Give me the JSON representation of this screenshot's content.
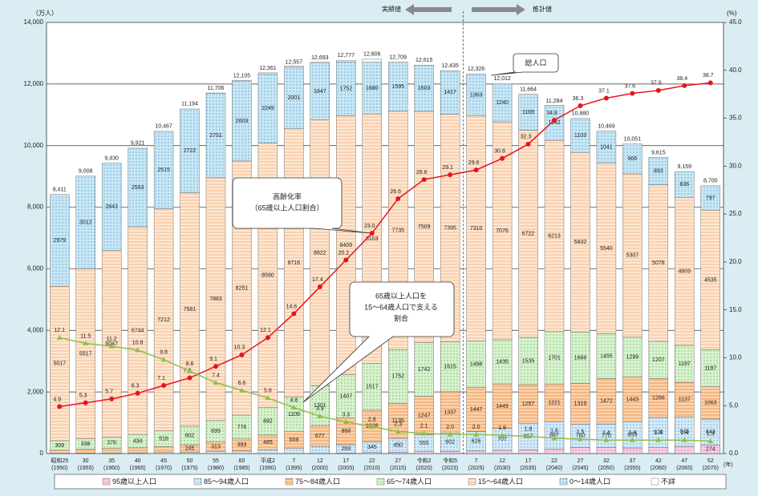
{
  "chart_data": {
    "type": "bar",
    "stacked": true,
    "y_unit_label": "（万人）",
    "y2_unit_label": "(%)",
    "x_unit_label": "(年)",
    "period_labels": [
      "実績値",
      "推計値"
    ],
    "categories": [
      [
        "昭和25",
        "(1950)"
      ],
      [
        "30",
        "(1955)"
      ],
      [
        "35",
        "(1960)"
      ],
      [
        "40",
        "(1965)"
      ],
      [
        "45",
        "(1970)"
      ],
      [
        "50",
        "(1975)"
      ],
      [
        "55",
        "(1980)"
      ],
      [
        "60",
        "(1985)"
      ],
      [
        "平成2",
        "(1990)"
      ],
      [
        "7",
        "(1995)"
      ],
      [
        "12",
        "(2000)"
      ],
      [
        "17",
        "(2005)"
      ],
      [
        "22",
        "(2010)"
      ],
      [
        "27",
        "(2015)"
      ],
      [
        "令和2",
        "(2020)"
      ],
      [
        "令和5",
        "(2023)"
      ],
      [
        "7",
        "(2025)"
      ],
      [
        "12",
        "(2030)"
      ],
      [
        "17",
        "(2035)"
      ],
      [
        "22",
        "(2040)"
      ],
      [
        "27",
        "(2045)"
      ],
      [
        "32",
        "(2050)"
      ],
      [
        "37",
        "(2055)"
      ],
      [
        "42",
        "(2060)"
      ],
      [
        "47",
        "(2065)"
      ],
      [
        "52",
        "(2070)"
      ]
    ],
    "ylim": [
      0,
      14000
    ],
    "yticks": [
      0,
      {
        "value": 2000,
        "label": "2,000"
      },
      {
        "value": 4000,
        "label": "4,000"
      },
      {
        "value": 6000,
        "label": "6,000"
      },
      {
        "value": 8000,
        "label": "8,000"
      },
      {
        "value": 10000,
        "label": "10,000"
      },
      {
        "value": 12000,
        "label": "12,000"
      },
      {
        "value": 14000,
        "label": "14,000"
      }
    ],
    "y2lim": [
      0,
      45
    ],
    "y2ticks": [
      {
        "value": 0,
        "label": "0.0"
      },
      {
        "value": 5,
        "label": "5.0"
      },
      {
        "value": 10,
        "label": "10.0"
      },
      {
        "value": 15,
        "label": "15.0"
      },
      {
        "value": 20,
        "label": "20.0"
      },
      {
        "value": 25,
        "label": "25.0"
      },
      {
        "value": 30,
        "label": "30.0"
      },
      {
        "value": 35,
        "label": "35.0"
      },
      {
        "value": 40,
        "label": "40.0"
      },
      {
        "value": 45,
        "label": "45.0"
      }
    ],
    "grid": true,
    "series": [
      {
        "name": "95歳以上人口",
        "color": "#f9cde4",
        "hatch": "dots",
        "hatch_color": "#d0559a",
        "values": [
          1,
          1,
          1,
          1,
          1,
          1,
          1,
          2,
          3,
          4,
          9,
          17,
          34,
          42,
          58,
          68,
          81,
          105,
          124,
          150,
          198,
          191,
          182,
          201,
          234,
          274
        ]
      },
      {
        "name": "85～94歳人口",
        "color": "#d3ebf8",
        "hatch": "dots",
        "hatch_color": "#3a7fc0",
        "values": [
          11,
          14,
          18,
          24,
          31,
          39,
          58,
          78,
          112,
          158,
          223,
          269,
          345,
          450,
          555,
          602,
          626,
          707,
          857,
          887,
          760,
          770,
          853,
          970,
          945,
          843
        ]
      },
      {
        "name": "75～84歳人口",
        "color": "#fbd3ae",
        "hatch": "lines",
        "hatch_color": "#ee8a3a",
        "values": [
          96,
          125,
          146,
          160,
          190,
          245,
          313,
          393,
          485,
          559,
          677,
          868,
          1028,
          1135,
          1247,
          1337,
          1447,
          1449,
          1257,
          1221,
          1319,
          1472,
          1443,
          1266,
          1137,
          1063
        ]
      },
      {
        "name": "65～74歳人口",
        "color": "#d8f2cf",
        "hatch": "dots",
        "hatch_color": "#4fa83a",
        "values": [
          309,
          338,
          376,
          434,
          516,
          602,
          699,
          776,
          892,
          1109,
          1301,
          1407,
          1517,
          1752,
          1742,
          1615,
          1498,
          1435,
          1535,
          1701,
          1668,
          1455,
          1299,
          1207,
          1197,
          1187
        ]
      },
      {
        "name": "15～64歳人口",
        "color": "#fde7d2",
        "hatch": "lines",
        "hatch_color": "#f3b07c",
        "values": [
          5017,
          5517,
          6047,
          6744,
          7212,
          7581,
          7883,
          8251,
          8590,
          8716,
          8622,
          8409,
          8103,
          7735,
          7509,
          7395,
          7310,
          7076,
          6722,
          6213,
          5832,
          5540,
          5307,
          5078,
          4809,
          4535
        ]
      },
      {
        "name": "0～14歳人口",
        "color": "#c8e7f5",
        "hatch": "dots",
        "hatch_color": "#2f86bf",
        "values": [
          2979,
          3012,
          2843,
          2553,
          2515,
          2722,
          2751,
          2603,
          2249,
          2001,
          1847,
          1752,
          1680,
          1595,
          1503,
          1417,
          1363,
          1240,
          1169,
          1142,
          1103,
          1041,
          966,
          893,
          836,
          797
        ]
      },
      {
        "name": "不詳",
        "color": "#ffffff",
        "hatch": "none",
        "hatch_color": "#ffffff",
        "values": [
          null,
          null,
          null,
          null,
          null,
          null,
          5,
          4,
          33,
          37,
          28,
          48,
          98,
          null,
          null,
          null,
          null,
          null,
          null,
          null,
          null,
          null,
          null,
          null,
          null,
          null
        ]
      }
    ],
    "totals": [
      8411,
      9008,
      9430,
      9921,
      10467,
      11194,
      11706,
      12105,
      12361,
      12557,
      12693,
      12777,
      12806,
      12709,
      12615,
      12435,
      12326,
      12012,
      11664,
      11284,
      10880,
      10469,
      10051,
      9615,
      9159,
      8700
    ],
    "total_labels": [
      "8,411",
      "9,008",
      "9,430",
      "9,921",
      "10,467",
      "11,194",
      "11,706",
      "12,105",
      "12,361",
      "12,557",
      "12,693",
      "12,777",
      "12,806",
      "12,709",
      "12,615",
      "12,435",
      "12,326",
      "12,012",
      "11,664",
      "11,284",
      "10,880",
      "10,469",
      "10,051",
      "9,615",
      "9,159",
      "8,700"
    ],
    "lines": [
      {
        "type": "line",
        "axis": "y2",
        "color": "#e8141c",
        "marker": "circle",
        "values": [
          4.9,
          5.3,
          5.7,
          6.3,
          7.1,
          7.9,
          9.1,
          10.3,
          12.1,
          14.6,
          17.4,
          20.2,
          23.0,
          26.6,
          28.6,
          29.1,
          29.6,
          30.8,
          32.3,
          34.8,
          36.3,
          37.1,
          37.6,
          37.9,
          38.4,
          38.7
        ],
        "value_labels": [
          "4.9",
          "5.3",
          "5.7",
          "6.3",
          "7.1",
          "7.9",
          "9.1",
          "10.3",
          "12.1",
          "14.6",
          "17.4",
          "20.2",
          "23.0",
          "26.6",
          "28.6",
          "29.1",
          "29.6",
          "30.8",
          "32.3",
          "34.8",
          "36.3",
          "37.1",
          "37.6",
          "37.9",
          "38.4",
          "38.7"
        ]
      },
      {
        "type": "line",
        "axis": "y2",
        "color": "#8cc04a",
        "marker": "triangle",
        "values": [
          12.1,
          11.5,
          11.2,
          10.8,
          9.8,
          8.6,
          7.4,
          6.6,
          5.8,
          4.8,
          3.9,
          3.3,
          2.8,
          2.3,
          2.1,
          2.0,
          2.0,
          1.9,
          1.8,
          1.6,
          1.5,
          1.4,
          1.4,
          1.4,
          1.4,
          1.3
        ],
        "value_labels": [
          "12.1",
          "11.5",
          "11.2",
          "10.8",
          "9.8",
          "8.6",
          "7.4",
          "6.6",
          "5.8",
          "4.8",
          "3.9",
          "3.3",
          "2.8",
          "2.3",
          "2.1",
          "2.0",
          "2.0",
          "1.9",
          "1.8",
          "1.6",
          "1.5",
          "1.4",
          "1.4",
          "1.4",
          "1.4",
          "1.3"
        ]
      }
    ],
    "annotations": {
      "total": [
        "総人口"
      ],
      "aging": [
        "高齢化率",
        "（65歳以上人口割合）"
      ],
      "support": [
        "65歳以上人口を",
        "15～64歳人口で支える",
        "割合"
      ]
    }
  }
}
